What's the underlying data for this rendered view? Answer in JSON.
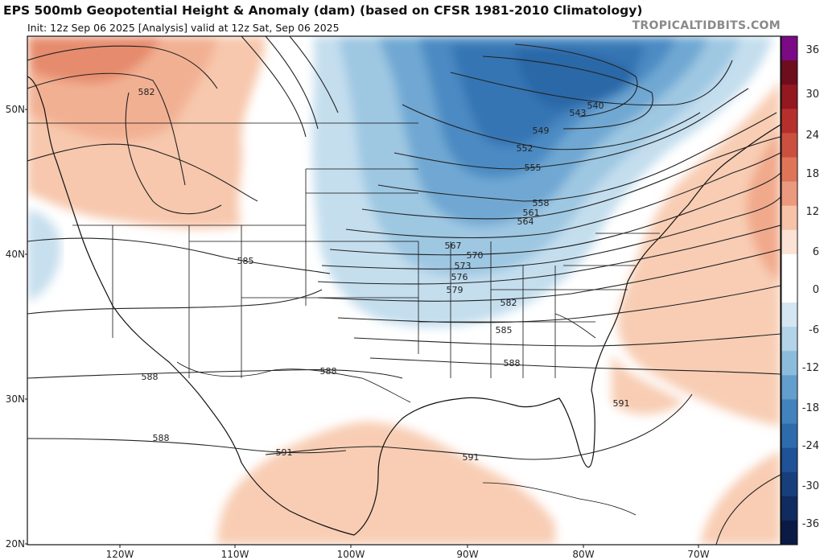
{
  "header": {
    "title": "EPS 500mb Geopotential Height & Anomaly (dam) (based on CFSR 1981-2010 Climatology)",
    "subtitle": "Init: 12z Sep 06 2025   [Analysis]   valid at 12z Sat, Sep 06 2025",
    "source": "TROPICALTIDBITS.COM"
  },
  "map": {
    "lat_labels": [
      "50N",
      "40N",
      "30N",
      "20N"
    ],
    "lon_labels": [
      "120W",
      "110W",
      "100W",
      "90W",
      "80W",
      "70W"
    ],
    "contour_labels": [
      "582",
      "585",
      "588",
      "588",
      "588",
      "591",
      "591",
      "591",
      "540",
      "543",
      "549",
      "552",
      "555",
      "558",
      "561",
      "564",
      "567",
      "570",
      "573",
      "576",
      "579",
      "582",
      "585",
      "588"
    ]
  },
  "colorbar": {
    "ticks": [
      "36",
      "30",
      "24",
      "18",
      "12",
      "6",
      "0",
      "-6",
      "-12",
      "-18",
      "-24",
      "-30",
      "-36"
    ],
    "colors": [
      "#7b0a86",
      "#6e0d1c",
      "#93181f",
      "#b5302c",
      "#cc5040",
      "#de7559",
      "#ec9a7f",
      "#f6c2a8",
      "#fbe2d4",
      "#ffffff",
      "#ffffff",
      "#d4e6f1",
      "#b2d3e8",
      "#8cbcdc",
      "#629fcc",
      "#4283bd",
      "#2e6bac",
      "#1f5296",
      "#173f7c",
      "#0f2b5f",
      "#0a1a45"
    ]
  }
}
